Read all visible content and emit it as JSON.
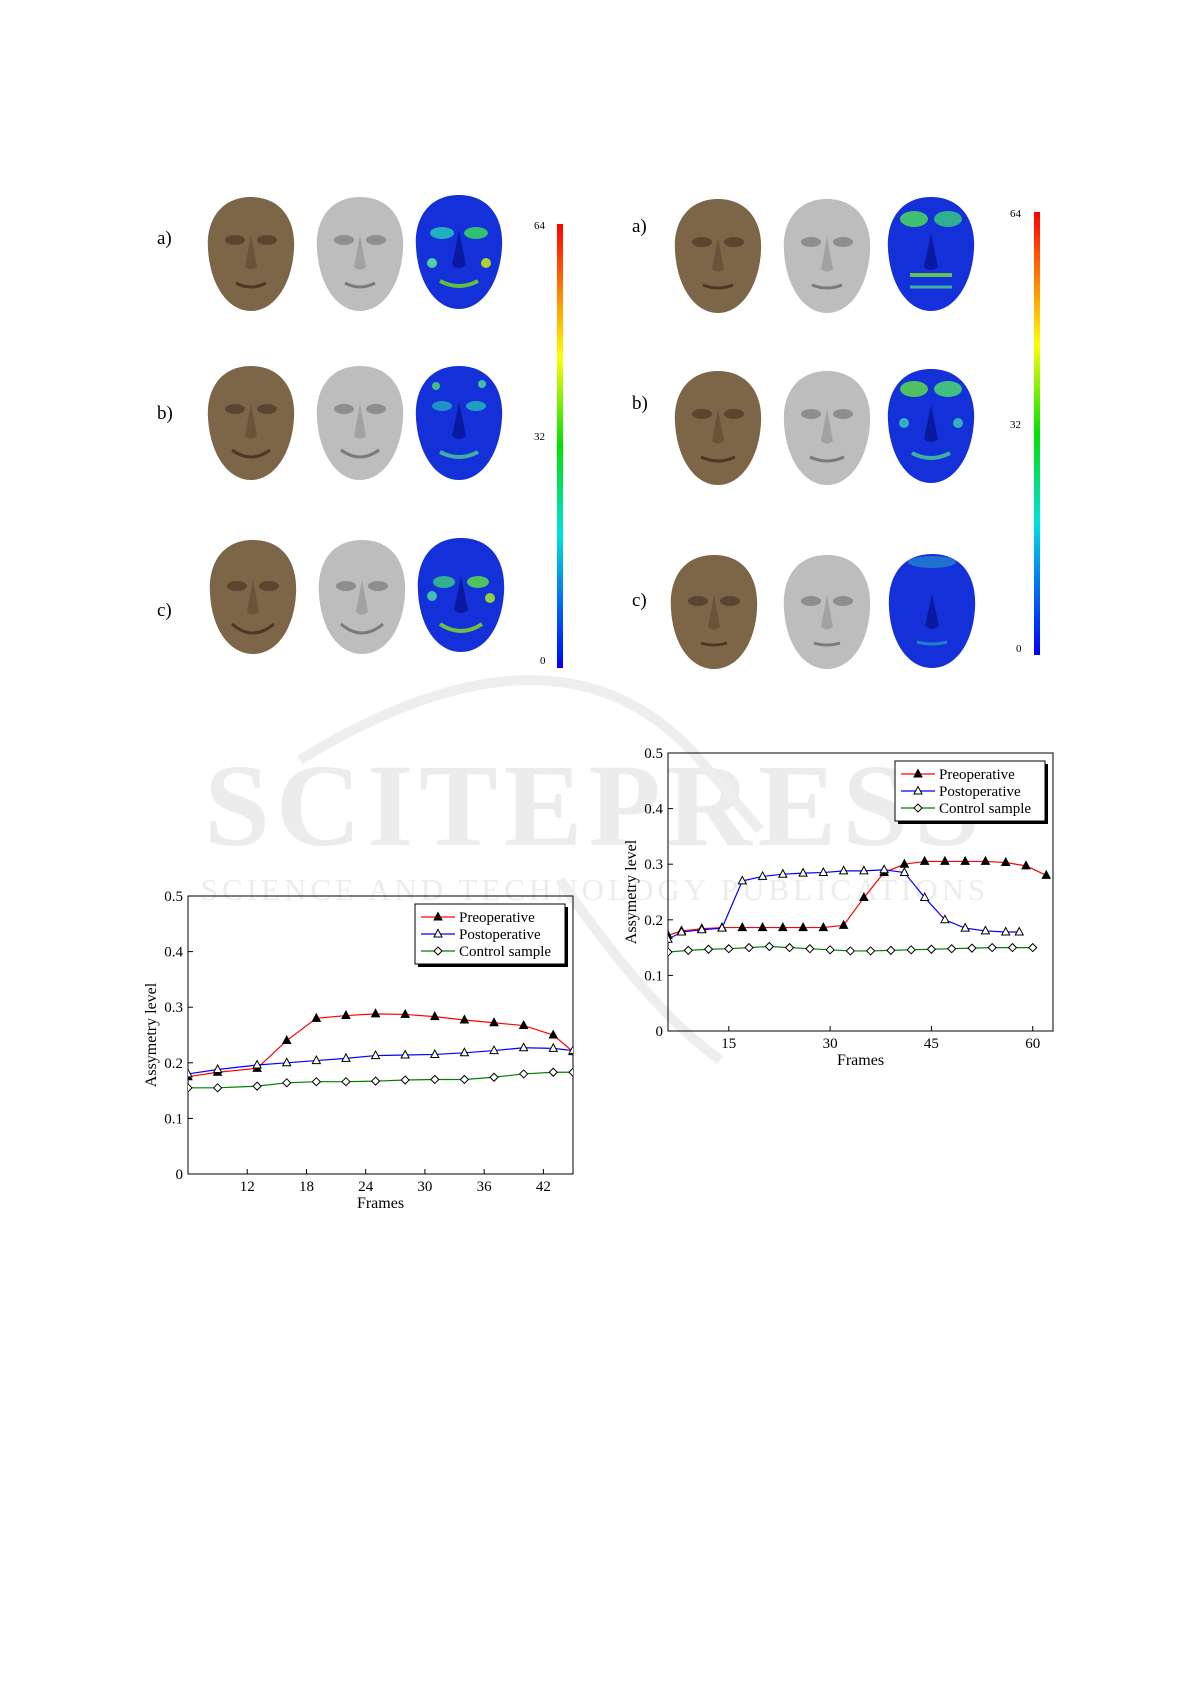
{
  "face_panels": [
    {
      "rows": [
        "a)",
        "b)",
        "c)"
      ],
      "colorbar": {
        "max": "64",
        "mid": "32",
        "min": "0"
      }
    },
    {
      "rows": [
        "a)",
        "b)",
        "c)"
      ],
      "colorbar": {
        "max": "64",
        "mid": "32",
        "min": "0"
      }
    }
  ],
  "colors": {
    "face_textured": "#7d6648",
    "face_mesh": "#bdbdbd",
    "heatmap_base": "#1430d8",
    "preoperative": "#ff0000",
    "postoperative": "#0000ff",
    "control": "#008000"
  },
  "watermark": {
    "main": "SCITEPRESS",
    "sub": "SCIENCE AND TECHNOLOGY PUBLICATIONS"
  },
  "chart_data": [
    {
      "type": "line",
      "xlabel": "Frames",
      "ylabel": "Assymetry level",
      "xlim": [
        6,
        45
      ],
      "ylim": [
        0,
        0.5
      ],
      "xticks": [
        "12",
        "18",
        "24",
        "30",
        "36",
        "42"
      ],
      "yticks": [
        "0",
        "0.1",
        "0.2",
        "0.3",
        "0.4",
        "0.5"
      ],
      "legend": "top-right",
      "series": [
        {
          "name": "Preoperative",
          "marker": "filled-triangle",
          "x": [
            6,
            9,
            13,
            16,
            19,
            22,
            25,
            28,
            31,
            34,
            37,
            40,
            43,
            45
          ],
          "y": [
            0.175,
            0.183,
            0.19,
            0.24,
            0.28,
            0.285,
            0.288,
            0.287,
            0.283,
            0.277,
            0.272,
            0.267,
            0.25,
            0.22
          ]
        },
        {
          "name": "Postoperative",
          "marker": "open-triangle",
          "x": [
            6,
            9,
            13,
            16,
            19,
            22,
            25,
            28,
            31,
            34,
            37,
            40,
            43,
            45
          ],
          "y": [
            0.18,
            0.188,
            0.196,
            0.2,
            0.204,
            0.208,
            0.213,
            0.214,
            0.215,
            0.218,
            0.222,
            0.227,
            0.226,
            0.222
          ]
        },
        {
          "name": "Control sample",
          "marker": "open-diamond",
          "x": [
            6,
            9,
            13,
            16,
            19,
            22,
            25,
            28,
            31,
            34,
            37,
            40,
            43,
            45
          ],
          "y": [
            0.155,
            0.155,
            0.158,
            0.164,
            0.166,
            0.166,
            0.167,
            0.169,
            0.17,
            0.17,
            0.174,
            0.18,
            0.183,
            0.183
          ]
        }
      ]
    },
    {
      "type": "line",
      "xlabel": "Frames",
      "ylabel": "Assymetry level",
      "xlim": [
        6,
        63
      ],
      "ylim": [
        0,
        0.5
      ],
      "xticks": [
        "15",
        "30",
        "45",
        "60"
      ],
      "yticks": [
        "0",
        "0.1",
        "0.2",
        "0.3",
        "0.4",
        "0.5"
      ],
      "legend": "top-right",
      "series": [
        {
          "name": "Preoperative",
          "marker": "filled-triangle",
          "x": [
            6,
            8,
            11,
            14,
            17,
            20,
            23,
            26,
            29,
            32,
            35,
            38,
            41,
            44,
            47,
            50,
            53,
            56,
            59,
            62
          ],
          "y": [
            0.172,
            0.18,
            0.184,
            0.186,
            0.186,
            0.186,
            0.186,
            0.186,
            0.186,
            0.19,
            0.24,
            0.285,
            0.3,
            0.305,
            0.305,
            0.305,
            0.305,
            0.303,
            0.297,
            0.28
          ]
        },
        {
          "name": "Postoperative",
          "marker": "open-triangle",
          "x": [
            6,
            8,
            11,
            14,
            17,
            20,
            23,
            26,
            29,
            32,
            35,
            38,
            41,
            44,
            47,
            50,
            53,
            56,
            58
          ],
          "y": [
            0.165,
            0.178,
            0.182,
            0.185,
            0.27,
            0.278,
            0.282,
            0.284,
            0.285,
            0.288,
            0.288,
            0.29,
            0.285,
            0.24,
            0.2,
            0.185,
            0.18,
            0.178,
            0.178
          ]
        },
        {
          "name": "Control sample",
          "marker": "open-diamond",
          "x": [
            6,
            9,
            12,
            15,
            18,
            21,
            24,
            27,
            30,
            33,
            36,
            39,
            42,
            45,
            48,
            51,
            54,
            57,
            60
          ],
          "y": [
            0.142,
            0.145,
            0.147,
            0.148,
            0.15,
            0.152,
            0.15,
            0.148,
            0.146,
            0.144,
            0.144,
            0.145,
            0.146,
            0.147,
            0.148,
            0.149,
            0.15,
            0.15,
            0.15
          ]
        }
      ]
    }
  ]
}
